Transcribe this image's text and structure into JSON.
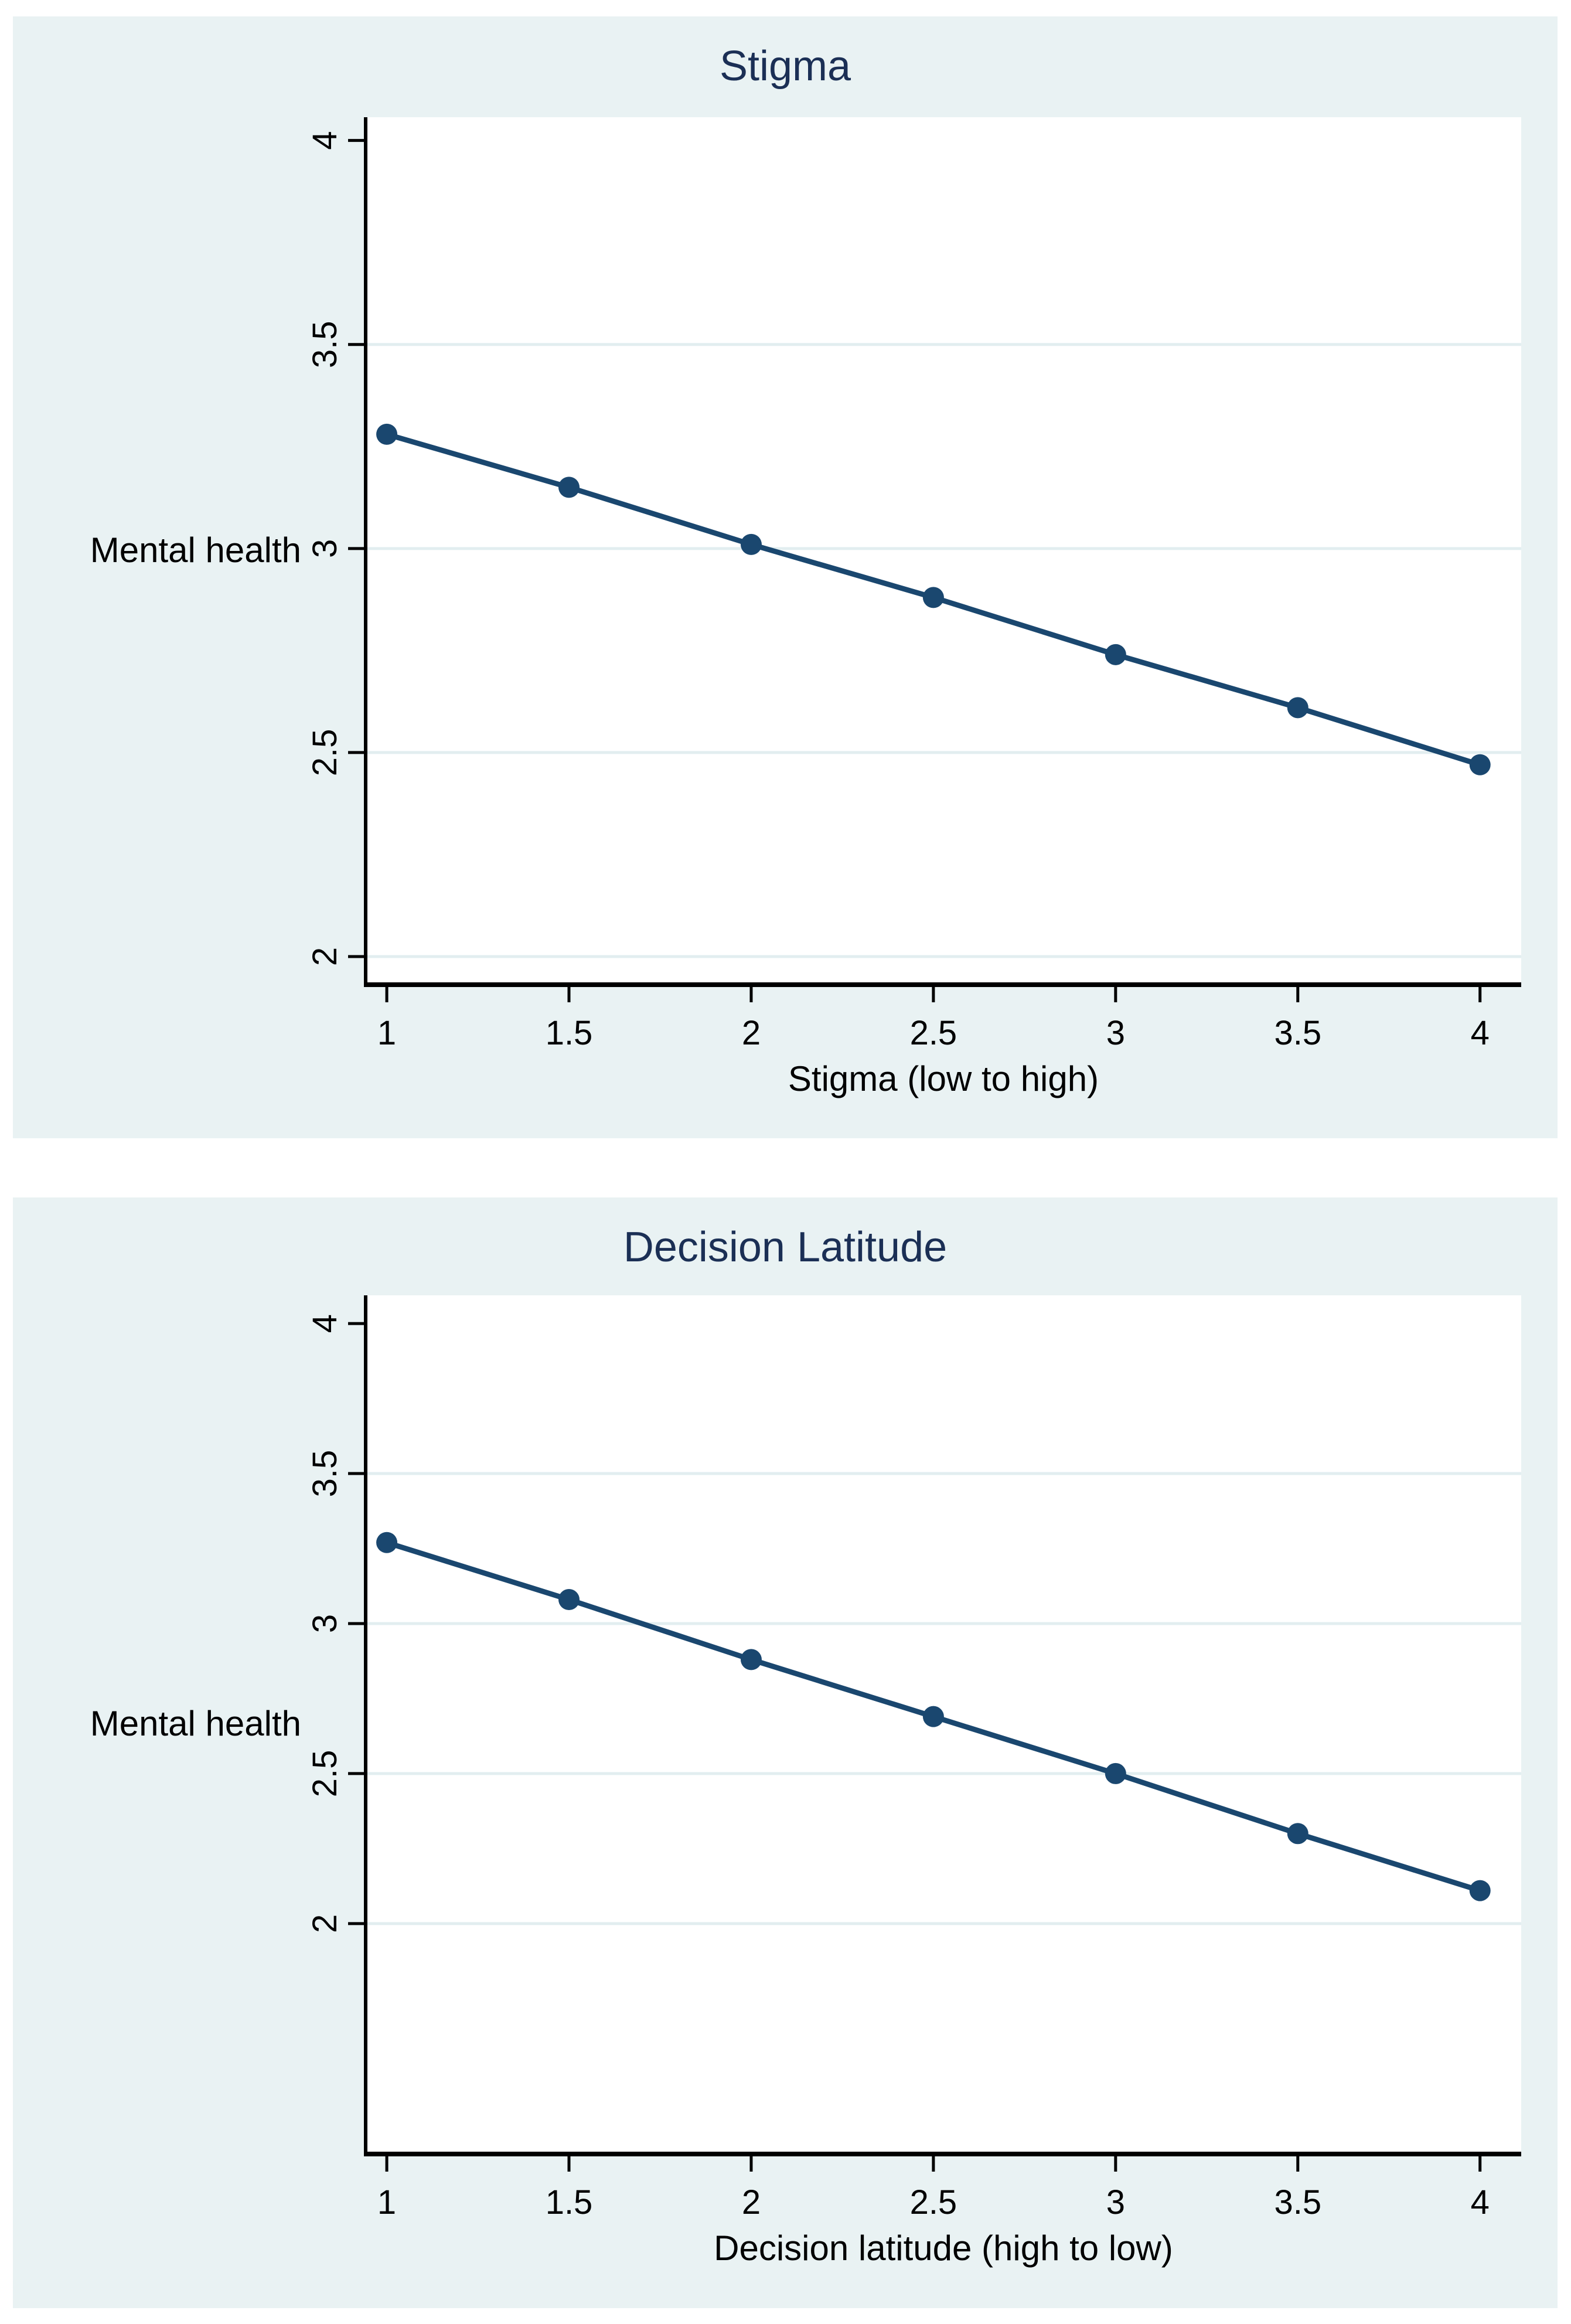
{
  "page": {
    "background": "#ffffff",
    "panel_background": "#e9f2f3"
  },
  "colors": {
    "panel_bg": "#e9f2f3",
    "plot_bg": "#ffffff",
    "line": "#1a476f",
    "marker": "#1a476f",
    "grid": "#e2eef0",
    "axis": "#000000",
    "tick_text": "#000000",
    "title_text": "#1b2f55"
  },
  "chart_data": [
    {
      "type": "line",
      "title": "Stigma",
      "xlabel": "Stigma (low to high)",
      "ylabel": "Mental health",
      "x": [
        1,
        1.5,
        2,
        2.5,
        3,
        3.5,
        4
      ],
      "y": [
        3.28,
        3.15,
        3.01,
        2.88,
        2.74,
        2.61,
        2.47
      ],
      "x_ticks": [
        1,
        1.5,
        2,
        2.5,
        3,
        3.5,
        4
      ],
      "y_ticks": [
        4,
        3.5,
        3,
        2.5,
        2
      ],
      "grid_ticks": [
        3.5,
        3,
        2.5,
        2
      ],
      "xlim": [
        0.942,
        4.113
      ],
      "ylim": [
        1.931,
        4.057
      ],
      "legend": "none",
      "marker": "circle"
    },
    {
      "type": "line",
      "title": "Decision Latitude",
      "xlabel": "Decision latitude (high to low)",
      "ylabel": "Mental health",
      "x": [
        1,
        1.5,
        2,
        2.5,
        3,
        3.5,
        4
      ],
      "y": [
        3.27,
        3.08,
        2.88,
        2.69,
        2.5,
        2.3,
        2.11
      ],
      "x_ticks": [
        1,
        1.5,
        2,
        2.5,
        3,
        3.5,
        4
      ],
      "y_ticks": [
        4,
        3.5,
        3,
        2.5,
        2
      ],
      "grid_ticks": [
        3.5,
        3,
        2.5,
        2
      ],
      "xlim": [
        0.942,
        4.113
      ],
      "ylim": [
        1.232,
        4.094
      ],
      "legend": "none",
      "marker": "circle"
    }
  ]
}
